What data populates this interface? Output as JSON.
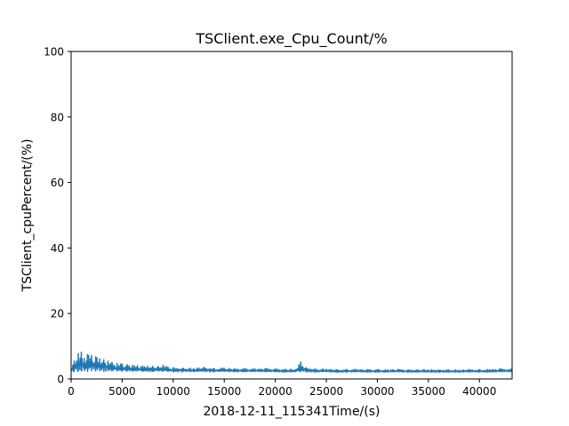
{
  "chart_data": {
    "type": "line",
    "title": "TSClient.exe_Cpu_Count/%",
    "xlabel": "2018-12-11_115341Time/(s)",
    "ylabel": "TSClient_cpuPercent/(%)",
    "xlim": [
      0,
      43200
    ],
    "ylim": [
      0,
      100
    ],
    "x_ticks": [
      "0",
      "5000",
      "10000",
      "15000",
      "20000",
      "25000",
      "30000",
      "35000",
      "40000"
    ],
    "y_ticks": [
      "0",
      "20",
      "40",
      "60",
      "80",
      "100"
    ],
    "grid": false,
    "series": [
      {
        "color": "#1f77b4",
        "x": [
          0,
          300,
          700,
          1000,
          1300,
          1600,
          2000,
          2400,
          2800,
          3200,
          3600,
          4000,
          4500,
          5000,
          5500,
          6000,
          6500,
          7000,
          7500,
          8000,
          8500,
          9000,
          9500,
          10000,
          11000,
          12000,
          13000,
          14000,
          15000,
          16000,
          17000,
          18000,
          19000,
          20000,
          21000,
          22000,
          22500,
          23000,
          24000,
          25000,
          26000,
          27000,
          28000,
          29000,
          30000,
          31000,
          32000,
          33000,
          34000,
          35000,
          36000,
          37000,
          38000,
          39000,
          40000,
          41000,
          42000,
          43200
        ],
        "y": [
          3.2,
          5.6,
          7.9,
          8.3,
          6.4,
          7.6,
          7.3,
          6.9,
          6.3,
          6.0,
          5.6,
          5.2,
          4.9,
          4.7,
          4.5,
          4.3,
          4.2,
          4.1,
          4.0,
          4.0,
          3.9,
          4.3,
          3.7,
          3.6,
          3.4,
          3.3,
          3.7,
          3.3,
          3.4,
          3.3,
          3.3,
          3.2,
          3.3,
          3.2,
          3.1,
          3.0,
          5.3,
          3.6,
          3.1,
          3.1,
          3.0,
          3.0,
          3.0,
          3.0,
          3.0,
          2.9,
          3.0,
          2.9,
          2.9,
          2.9,
          2.9,
          2.9,
          2.8,
          3.0,
          2.9,
          3.0,
          3.2,
          3.1
        ],
        "y_low": [
          2.4,
          2.2,
          2.3,
          2.3,
          2.4,
          2.2,
          2.4,
          2.3,
          2.4,
          2.2,
          2.4,
          2.3,
          2.3,
          2.2,
          2.3,
          2.2,
          2.3,
          2.2,
          2.2,
          2.2,
          2.3,
          2.2,
          2.2,
          2.1,
          2.2,
          2.1,
          2.2,
          2.1,
          2.2,
          2.1,
          2.1,
          2.2,
          2.1,
          2.1,
          2.0,
          2.1,
          2.1,
          2.1,
          2.0,
          2.1,
          2.0,
          2.0,
          2.1,
          2.0,
          2.0,
          2.0,
          2.1,
          2.0,
          2.0,
          2.0,
          2.0,
          2.0,
          2.0,
          2.1,
          2.0,
          2.0,
          2.1,
          2.1
        ]
      }
    ]
  }
}
